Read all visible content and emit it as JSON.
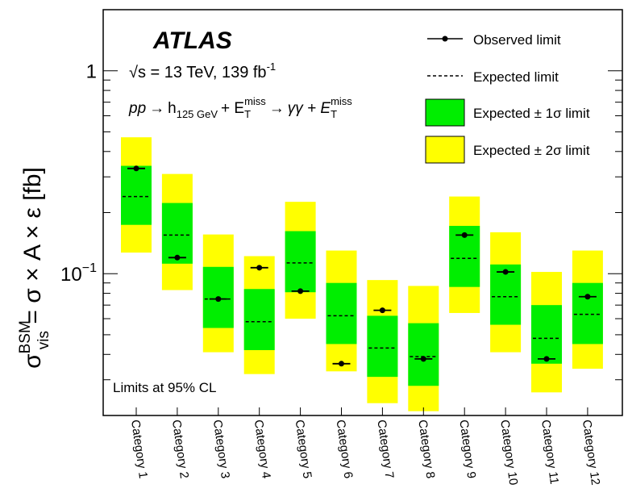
{
  "chart_data": {
    "type": "bar",
    "experiment": "ATLAS",
    "energy_label": "√s = 13 TeV, 139 fb",
    "energy_lumi_exp": "-1",
    "process_pp": "pp",
    "process_arrow": "→",
    "process_h": "h",
    "process_h_sub": "125 GeV",
    "process_plus1": "+ E",
    "process_met_sub": "T",
    "process_met_sup": "miss",
    "process_gg": "γγ + E",
    "footnote": "Limits at 95% CL",
    "ylabel": {
      "sigma": "σ",
      "sup": "BSM",
      "sub": "vis",
      "rest": " = σ × A × ε [fb]"
    },
    "y_scale": "log",
    "ylim": [
      0.02,
      2.0
    ],
    "y_ticks": [
      {
        "value": 1,
        "label": "1",
        "exp": ""
      },
      {
        "value": 0.1,
        "label": "10",
        "exp": "−1"
      }
    ],
    "categories": [
      "Category 1",
      "Category 2",
      "Category 3",
      "Category 4",
      "Category 5",
      "Category 6",
      "Category 7",
      "Category 8",
      "Category 9",
      "Category 10",
      "Category 11",
      "Category 12"
    ],
    "series": [
      {
        "name": "Observed limit",
        "values": [
          0.33,
          0.12,
          0.075,
          0.107,
          0.082,
          0.036,
          0.066,
          0.038,
          0.155,
          0.102,
          0.038,
          0.077
        ]
      },
      {
        "name": "Expected limit",
        "values": [
          0.24,
          0.155,
          0.075,
          0.058,
          0.113,
          0.062,
          0.043,
          0.039,
          0.119,
          0.077,
          0.048,
          0.063
        ]
      },
      {
        "name": "Expected ± 1σ limit",
        "low": [
          0.174,
          0.112,
          0.054,
          0.042,
          0.081,
          0.045,
          0.031,
          0.028,
          0.086,
          0.056,
          0.036,
          0.045
        ],
        "high": [
          0.34,
          0.223,
          0.108,
          0.084,
          0.162,
          0.09,
          0.062,
          0.057,
          0.172,
          0.111,
          0.07,
          0.09
        ]
      },
      {
        "name": "Expected ± 2σ limit",
        "low": [
          0.127,
          0.083,
          0.041,
          0.032,
          0.06,
          0.033,
          0.023,
          0.021,
          0.064,
          0.041,
          0.026,
          0.034
        ],
        "high": [
          0.47,
          0.31,
          0.156,
          0.122,
          0.226,
          0.13,
          0.093,
          0.087,
          0.24,
          0.16,
          0.102,
          0.13
        ]
      }
    ],
    "colors": {
      "band_1sigma": "#00ee00",
      "band_2sigma": "#ffff00",
      "observed": "#000000",
      "expected": "#000000"
    },
    "legend_position": "top-right"
  }
}
